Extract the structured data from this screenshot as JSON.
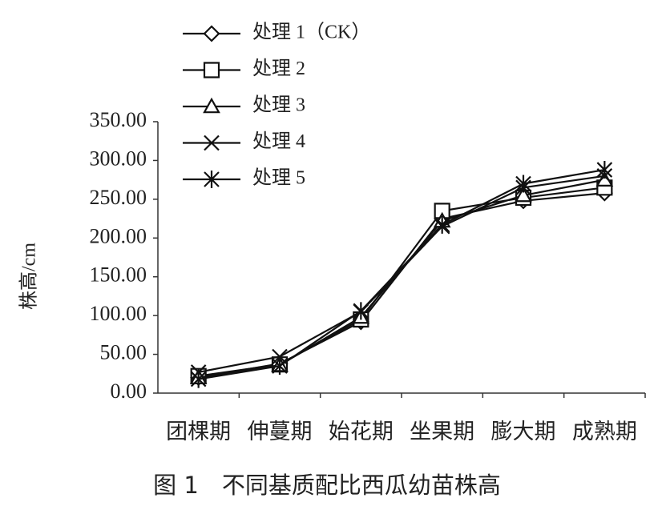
{
  "chart_data": {
    "type": "line",
    "title": "图 1　不同基质配比西瓜幼苗株高",
    "y_label": "株高/cm",
    "categories": [
      "团棵期",
      "伸蔓期",
      "始花期",
      "坐果期",
      "膨大期",
      "成熟期"
    ],
    "ylim": [
      0,
      350
    ],
    "yticks": [
      {
        "value": 0,
        "label": "0.00"
      },
      {
        "value": 50,
        "label": "50.00"
      },
      {
        "value": 100,
        "label": "100.00"
      },
      {
        "value": 150,
        "label": "150.00"
      },
      {
        "value": 200,
        "label": "200.00"
      },
      {
        "value": 250,
        "label": "250.00"
      },
      {
        "value": 300,
        "label": "300.00"
      },
      {
        "value": 350,
        "label": "350.00"
      }
    ],
    "grid": false,
    "legend": "top-left",
    "series": [
      {
        "name": "处理 1（CK）",
        "color": "#111111",
        "marker": "diamond",
        "values": [
          20,
          38,
          92,
          225,
          248,
          258
        ]
      },
      {
        "name": "处理 2",
        "color": "#111111",
        "marker": "square",
        "values": [
          22,
          37,
          95,
          235,
          252,
          265
        ]
      },
      {
        "name": "处理 3",
        "color": "#111111",
        "marker": "triangle",
        "values": [
          20,
          36,
          98,
          222,
          255,
          275
        ]
      },
      {
        "name": "处理 4",
        "color": "#111111",
        "marker": "x",
        "values": [
          27,
          47,
          105,
          215,
          265,
          280
        ]
      },
      {
        "name": "处理 5",
        "color": "#111111",
        "marker": "asterisk",
        "values": [
          18,
          35,
          106,
          217,
          270,
          288
        ]
      }
    ]
  }
}
